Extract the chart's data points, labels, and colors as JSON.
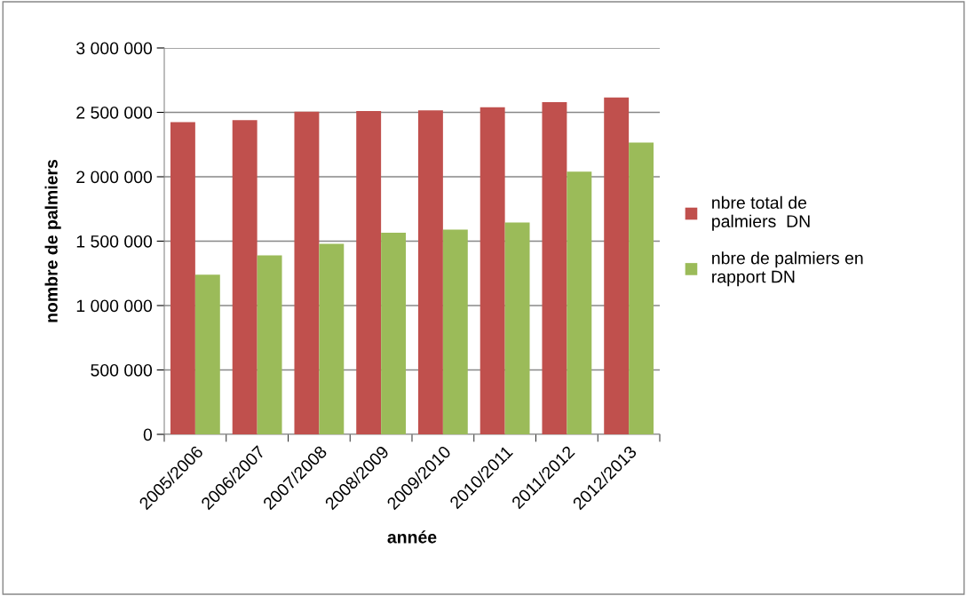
{
  "chart_data": {
    "type": "bar",
    "xlabel": "année",
    "ylabel": "nombre de palmiers",
    "categories": [
      "2005/2006",
      "2006/2007",
      "2007/2008",
      "2008/2009",
      "2009/2010",
      "2010/2011",
      "2011/2012",
      "2012/2013"
    ],
    "series": [
      {
        "name": "nbre total de\npalmiers  DN",
        "color": "#c0504d",
        "values": [
          2425000,
          2440000,
          2505000,
          2510000,
          2515000,
          2540000,
          2580000,
          2615000
        ]
      },
      {
        "name": "nbre de palmiers en\nrapport DN",
        "color": "#9bbb59",
        "values": [
          1240000,
          1390000,
          1480000,
          1565000,
          1590000,
          1645000,
          2040000,
          2265000
        ]
      }
    ],
    "ylim": [
      0,
      3000000
    ],
    "yticks": [
      {
        "value": 0,
        "label": "0"
      },
      {
        "value": 500000,
        "label": "500 000"
      },
      {
        "value": 1000000,
        "label": "1 000 000"
      },
      {
        "value": 1500000,
        "label": "1 500 000"
      },
      {
        "value": 2000000,
        "label": "2 000 000"
      },
      {
        "value": 2500000,
        "label": "2 500 000"
      },
      {
        "value": 3000000,
        "label": "3 000 000"
      }
    ],
    "grid": "y",
    "legend": "right"
  }
}
